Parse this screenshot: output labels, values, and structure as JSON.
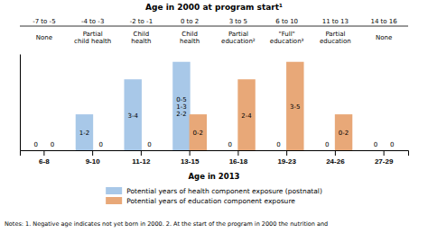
{
  "chart_data": {
    "type": "bar",
    "title": "Age in 2000 at program start¹",
    "x_label": "Age in 2013",
    "categories": [
      "6-8",
      "9-10",
      "11-12",
      "13-15",
      "16-18",
      "19-23",
      "24-26",
      "27-29"
    ],
    "series": [
      {
        "name": "Potential years of health component exposure (postnatal)",
        "color": "#a8c8e8",
        "values": [
          0,
          2,
          4,
          5,
          0,
          0,
          0,
          0
        ],
        "value_labels": [
          "0",
          "1-2",
          "3-4",
          "0-5\n1-3\n2-2",
          "0",
          "0",
          "0",
          "0"
        ]
      },
      {
        "name": "Potential years of education component exposure",
        "color": "#e8a878",
        "values": [
          0,
          0,
          0,
          2,
          4,
          5,
          2,
          0
        ],
        "value_labels": [
          "0",
          "0",
          "0",
          "0-2",
          "2-4",
          "3-5",
          "0-2",
          "0"
        ]
      }
    ],
    "annotations": {
      "age_2000": [
        "-7 to -5",
        "-4 to -3",
        "-2 to -1",
        "0 to 2",
        "3 to 5",
        "6 to 10",
        "11 to 13",
        "14 to 16"
      ],
      "exposure": [
        [
          "None"
        ],
        [
          "Partial",
          "child health"
        ],
        [
          "Child",
          "health"
        ],
        [
          "Child",
          "health"
        ],
        [
          "Partial",
          "education²"
        ],
        [
          "\"Full\"",
          "education³"
        ],
        [
          "Partial",
          "education"
        ],
        [
          "None"
        ]
      ],
      "note": "Notes: 1. Negative age indicates not yet born in 2000. 2. At the start of the program in 2000 the nutrition and"
    },
    "ylim": [
      0,
      5.5
    ],
    "tick_labels": "x",
    "grid": false,
    "data_labels": true,
    "legend": "bottom"
  }
}
